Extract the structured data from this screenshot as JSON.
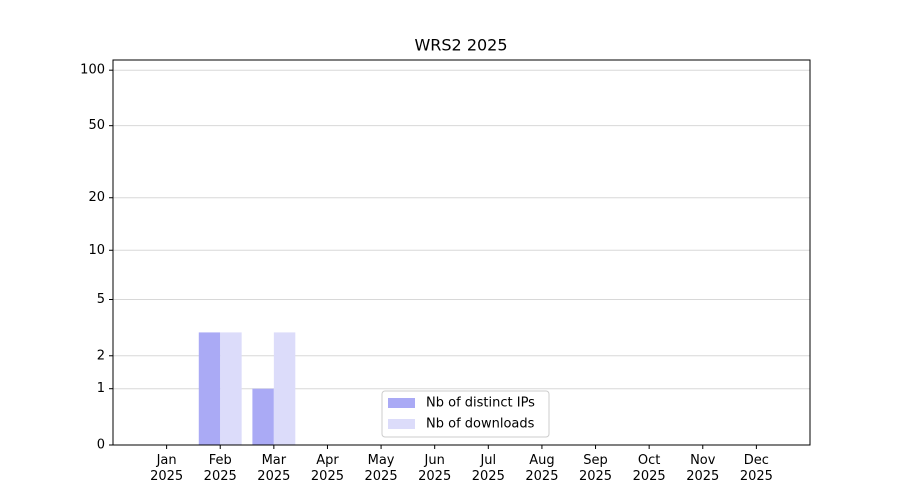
{
  "chart_data": {
    "type": "bar",
    "title": "WRS2 2025",
    "categories": [
      "Jan\n2025",
      "Feb\n2025",
      "Mar\n2025",
      "Apr\n2025",
      "May\n2025",
      "Jun\n2025",
      "Jul\n2025",
      "Aug\n2025",
      "Sep\n2025",
      "Oct\n2025",
      "Nov\n2025",
      "Dec\n2025"
    ],
    "series": [
      {
        "name": "Nb of distinct IPs",
        "color": "#aaaaf5",
        "values": [
          0,
          3,
          1,
          0,
          0,
          0,
          0,
          0,
          0,
          0,
          0,
          0
        ]
      },
      {
        "name": "Nb of downloads",
        "color": "#dcdcfa",
        "values": [
          0,
          3,
          3,
          0,
          0,
          0,
          0,
          0,
          0,
          0,
          0,
          0
        ]
      }
    ],
    "yscale": "log1p",
    "ylim": [
      0,
      113.5
    ],
    "yticks": [
      0,
      1,
      2,
      5,
      10,
      20,
      50,
      100
    ],
    "grid": true,
    "legend": "lower center"
  }
}
